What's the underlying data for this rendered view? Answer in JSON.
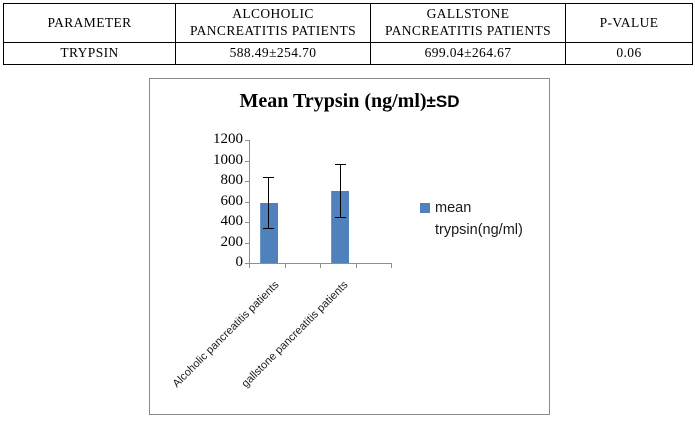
{
  "table": {
    "headers": [
      "PARAMETER",
      "ALCOHOLIC\nPANCREATITIS PATIENTS",
      "GALLSTONE\nPANCREATITIS PATIENTS",
      "P-VALUE"
    ],
    "rows": [
      [
        "TRYPSIN",
        "588.49±254.70",
        "699.04±264.67",
        "0.06"
      ]
    ]
  },
  "chart_data": {
    "type": "bar",
    "title": "Mean Trypsin (ng/ml)±SD",
    "title_main": "Mean Trypsin (ng/ml)",
    "title_suffix": "±SD",
    "categories": [
      "Alcoholic pancreatitis patients",
      "gallstone pancreatitis patients"
    ],
    "series": [
      {
        "name": "mean trypsin(ng/ml)",
        "values": [
          588.49,
          699.04
        ],
        "errors": [
          254.7,
          264.67
        ]
      }
    ],
    "ylim": [
      0,
      1200
    ],
    "ytick_step": 200,
    "yticks": [
      "1200",
      "1000",
      "800",
      "600",
      "400",
      "200",
      "0"
    ],
    "xlabel": "",
    "ylabel": "",
    "grid": false,
    "legend_position": "right",
    "bar_color": "#4f81bd",
    "error_bar_color": "#000000",
    "axis_color": "#8f8f8f"
  }
}
